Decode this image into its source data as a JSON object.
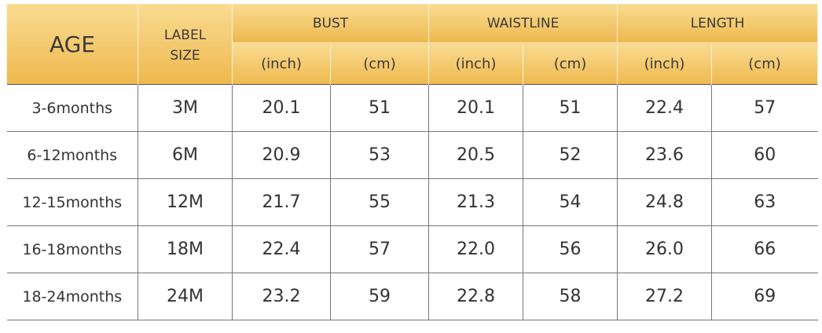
{
  "table": {
    "header": {
      "age": "AGE",
      "label_size": "LABEL SIZE",
      "groups": [
        "BUST",
        "WAISTLINE",
        "LENGTH"
      ],
      "units": [
        "(inch)",
        "(cm)",
        "(inch)",
        "(cm)",
        "(inch)",
        "(cm)"
      ]
    },
    "rows": [
      [
        "3-6months",
        "3M",
        "20.1",
        "51",
        "20.1",
        "51",
        "22.4",
        "57"
      ],
      [
        "6-12months",
        "6M",
        "20.9",
        "53",
        "20.5",
        "52",
        "23.6",
        "60"
      ],
      [
        "12-15months",
        "12M",
        "21.7",
        "55",
        "21.3",
        "54",
        "24.8",
        "63"
      ],
      [
        "16-18months",
        "18M",
        "22.4",
        "57",
        "22.0",
        "56",
        "26.0",
        "66"
      ],
      [
        "18-24months",
        "24M",
        "23.2",
        "59",
        "22.8",
        "58",
        "27.2",
        "69"
      ]
    ]
  }
}
